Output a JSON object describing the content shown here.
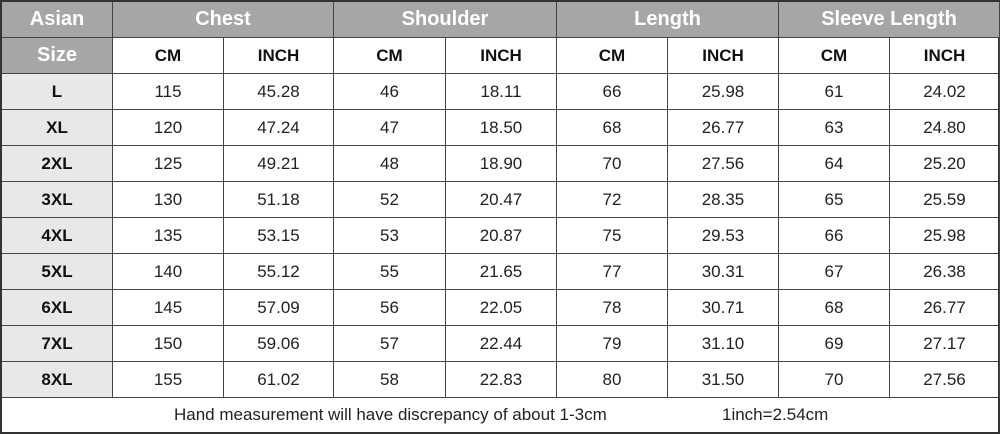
{
  "header": {
    "groups": [
      "Asian",
      "Chest",
      "Shoulder",
      "Length",
      "Sleeve Length"
    ],
    "size_label": "Size",
    "units": [
      "CM",
      "INCH",
      "CM",
      "INCH",
      "CM",
      "INCH",
      "CM",
      "INCH"
    ]
  },
  "table": {
    "rows": [
      [
        "L",
        "115",
        "45.28",
        "46",
        "18.11",
        "66",
        "25.98",
        "61",
        "24.02"
      ],
      [
        "XL",
        "120",
        "47.24",
        "47",
        "18.50",
        "68",
        "26.77",
        "63",
        "24.80"
      ],
      [
        "2XL",
        "125",
        "49.21",
        "48",
        "18.90",
        "70",
        "27.56",
        "64",
        "25.20"
      ],
      [
        "3XL",
        "130",
        "51.18",
        "52",
        "20.47",
        "72",
        "28.35",
        "65",
        "25.59"
      ],
      [
        "4XL",
        "135",
        "53.15",
        "53",
        "20.87",
        "75",
        "29.53",
        "66",
        "25.98"
      ],
      [
        "5XL",
        "140",
        "55.12",
        "55",
        "21.65",
        "77",
        "30.31",
        "67",
        "26.38"
      ],
      [
        "6XL",
        "145",
        "57.09",
        "56",
        "22.05",
        "78",
        "30.71",
        "68",
        "26.77"
      ],
      [
        "7XL",
        "150",
        "59.06",
        "57",
        "22.44",
        "79",
        "31.10",
        "69",
        "27.17"
      ],
      [
        "8XL",
        "155",
        "61.02",
        "58",
        "22.83",
        "80",
        "31.50",
        "70",
        "27.56"
      ]
    ]
  },
  "footer": {
    "note": "Hand measurement will have discrepancy of about 1-3cm",
    "conversion": "1inch=2.54cm"
  }
}
